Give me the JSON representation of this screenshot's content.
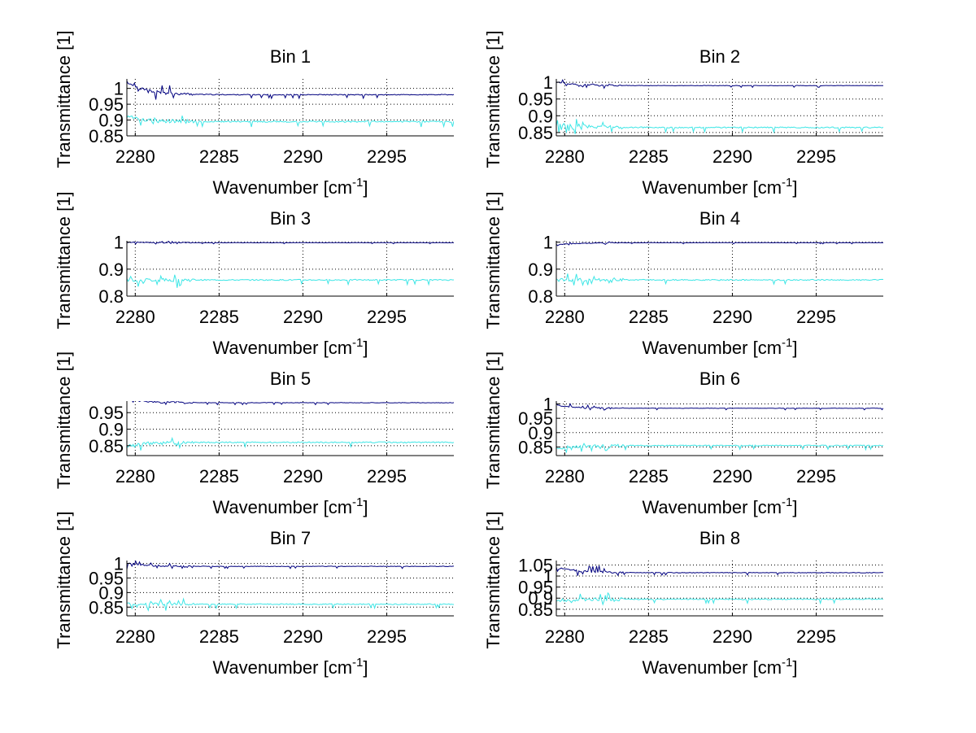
{
  "chart_data": [
    {
      "type": "line",
      "title": "Bin 1",
      "xlabel": "Wavenumber [cm",
      "xlabel_sup": "-1",
      "xlabel_end": "]",
      "ylabel": "Transmittance [1]",
      "xlim": [
        2279.5,
        2299
      ],
      "ylim": [
        0.85,
        1.03
      ],
      "xticks": [
        2280,
        2285,
        2290,
        2295
      ],
      "yticks": [
        0.85,
        0.9,
        0.95,
        1
      ],
      "ytick_labels": [
        "0.85",
        "0.9",
        "0.95",
        "1"
      ],
      "grid": true,
      "series": [
        {
          "name": "upper",
          "color": "#00007f",
          "base": 0.98,
          "start": 1.02,
          "noise": 0.004,
          "spike": 0.03,
          "seed": 11
        },
        {
          "name": "lower",
          "color": "#3ee6e6",
          "base": 0.895,
          "start": 0.91,
          "noise": 0.006,
          "spike": 0.015,
          "seed": 12
        }
      ]
    },
    {
      "type": "line",
      "title": "Bin 2",
      "xlabel": "Wavenumber [cm",
      "xlabel_sup": "-1",
      "xlabel_end": "]",
      "ylabel": "Transmittance [1]",
      "xlim": [
        2279.5,
        2299
      ],
      "ylim": [
        0.84,
        1.01
      ],
      "xticks": [
        2280,
        2285,
        2290,
        2295
      ],
      "yticks": [
        0.85,
        0.9,
        0.95,
        1
      ],
      "ytick_labels": [
        "0.85",
        "0.9",
        "0.95",
        "1"
      ],
      "grid": true,
      "series": [
        {
          "name": "upper",
          "color": "#00007f",
          "base": 0.99,
          "start": 1.0,
          "noise": 0.002,
          "spike": 0.008,
          "seed": 21
        },
        {
          "name": "lower",
          "color": "#3ee6e6",
          "base": 0.865,
          "start": 0.875,
          "noise": 0.005,
          "spike": 0.02,
          "seed": 22
        }
      ]
    },
    {
      "type": "line",
      "title": "Bin 3",
      "xlabel": "Wavenumber [cm",
      "xlabel_sup": "-1",
      "xlabel_end": "]",
      "ylabel": "Transmittance [1]",
      "xlim": [
        2279.5,
        2299
      ],
      "ylim": [
        0.8,
        1.005
      ],
      "xticks": [
        2280,
        2285,
        2290,
        2295
      ],
      "yticks": [
        0.8,
        0.9,
        1
      ],
      "ytick_labels": [
        "0.8",
        "0.9",
        "1"
      ],
      "grid": true,
      "series": [
        {
          "name": "upper",
          "color": "#00007f",
          "base": 0.998,
          "start": 1.0,
          "noise": 0.0015,
          "spike": 0.005,
          "seed": 31
        },
        {
          "name": "lower",
          "color": "#3ee6e6",
          "base": 0.86,
          "start": 0.86,
          "noise": 0.006,
          "spike": 0.025,
          "seed": 32
        }
      ]
    },
    {
      "type": "line",
      "title": "Bin 4",
      "xlabel": "Wavenumber [cm",
      "xlabel_sup": "-1",
      "xlabel_end": "]",
      "ylabel": "Transmittance [1]",
      "xlim": [
        2279.5,
        2299
      ],
      "ylim": [
        0.8,
        1.005
      ],
      "xticks": [
        2280,
        2285,
        2290,
        2295
      ],
      "yticks": [
        0.8,
        0.9,
        1
      ],
      "ytick_labels": [
        "0.8",
        "0.9",
        "1"
      ],
      "grid": true,
      "series": [
        {
          "name": "upper",
          "color": "#00007f",
          "base": 0.998,
          "start": 0.99,
          "noise": 0.0015,
          "spike": 0.006,
          "seed": 41
        },
        {
          "name": "lower",
          "color": "#3ee6e6",
          "base": 0.86,
          "start": 0.86,
          "noise": 0.006,
          "spike": 0.025,
          "seed": 42
        }
      ]
    },
    {
      "type": "line",
      "title": "Bin 5",
      "xlabel": "Wavenumber [cm",
      "xlabel_sup": "-1",
      "xlabel_end": "]",
      "ylabel": "Transmittance [1]",
      "xlim": [
        2279.5,
        2299
      ],
      "ylim": [
        0.82,
        0.985
      ],
      "xticks": [
        2280,
        2285,
        2290,
        2295
      ],
      "yticks": [
        0.85,
        0.9,
        0.95
      ],
      "ytick_labels": [
        "0.85",
        "0.9",
        "0.95"
      ],
      "grid": true,
      "series": [
        {
          "name": "upper",
          "color": "#00007f",
          "base": 0.98,
          "start": 0.99,
          "noise": 0.002,
          "spike": 0.008,
          "seed": 51
        },
        {
          "name": "lower",
          "color": "#3ee6e6",
          "base": 0.86,
          "start": 0.85,
          "noise": 0.005,
          "spike": 0.02,
          "seed": 52
        }
      ]
    },
    {
      "type": "line",
      "title": "Bin 6",
      "xlabel": "Wavenumber [cm",
      "xlabel_sup": "-1",
      "xlabel_end": "]",
      "ylabel": "Transmittance [1]",
      "xlim": [
        2279.5,
        2299
      ],
      "ylim": [
        0.82,
        1.01
      ],
      "xticks": [
        2280,
        2285,
        2290,
        2295
      ],
      "yticks": [
        0.85,
        0.9,
        0.95,
        1
      ],
      "ytick_labels": [
        "0.85",
        "0.9",
        "0.95",
        "1"
      ],
      "grid": true,
      "series": [
        {
          "name": "upper",
          "color": "#00007f",
          "base": 0.985,
          "start": 0.995,
          "noise": 0.002,
          "spike": 0.01,
          "seed": 61
        },
        {
          "name": "lower",
          "color": "#3ee6e6",
          "base": 0.855,
          "start": 0.845,
          "noise": 0.005,
          "spike": 0.02,
          "seed": 62
        }
      ]
    },
    {
      "type": "line",
      "title": "Bin 7",
      "xlabel": "Wavenumber [cm",
      "xlabel_sup": "-1",
      "xlabel_end": "]",
      "ylabel": "Transmittance [1]",
      "xlim": [
        2279.5,
        2299
      ],
      "ylim": [
        0.82,
        1.01
      ],
      "xticks": [
        2280,
        2285,
        2290,
        2295
      ],
      "yticks": [
        0.85,
        0.9,
        0.95,
        1
      ],
      "ytick_labels": [
        "0.85",
        "0.9",
        "0.95",
        "1"
      ],
      "grid": true,
      "series": [
        {
          "name": "upper",
          "color": "#00007f",
          "base": 0.99,
          "start": 1.0,
          "noise": 0.0025,
          "spike": 0.012,
          "seed": 71
        },
        {
          "name": "lower",
          "color": "#3ee6e6",
          "base": 0.86,
          "start": 0.86,
          "noise": 0.005,
          "spike": 0.02,
          "seed": 72
        }
      ]
    },
    {
      "type": "line",
      "title": "Bin 8",
      "xlabel": "Wavenumber [cm",
      "xlabel_sup": "-1",
      "xlabel_end": "]",
      "ylabel": "Transmittance [1]",
      "xlim": [
        2279.5,
        2299
      ],
      "ylim": [
        0.82,
        1.07
      ],
      "xticks": [
        2280,
        2285,
        2290,
        2295
      ],
      "yticks": [
        0.85,
        0.9,
        0.95,
        1,
        1.05
      ],
      "ytick_labels": [
        "0.85",
        "0.9",
        "0.95",
        "1",
        "1.05"
      ],
      "grid": true,
      "series": [
        {
          "name": "upper",
          "color": "#00007f",
          "base": 1.015,
          "start": 1.04,
          "noise": 0.004,
          "spike": 0.03,
          "seed": 81
        },
        {
          "name": "lower",
          "color": "#3ee6e6",
          "base": 0.895,
          "start": 0.89,
          "noise": 0.007,
          "spike": 0.03,
          "seed": 82
        }
      ]
    }
  ]
}
